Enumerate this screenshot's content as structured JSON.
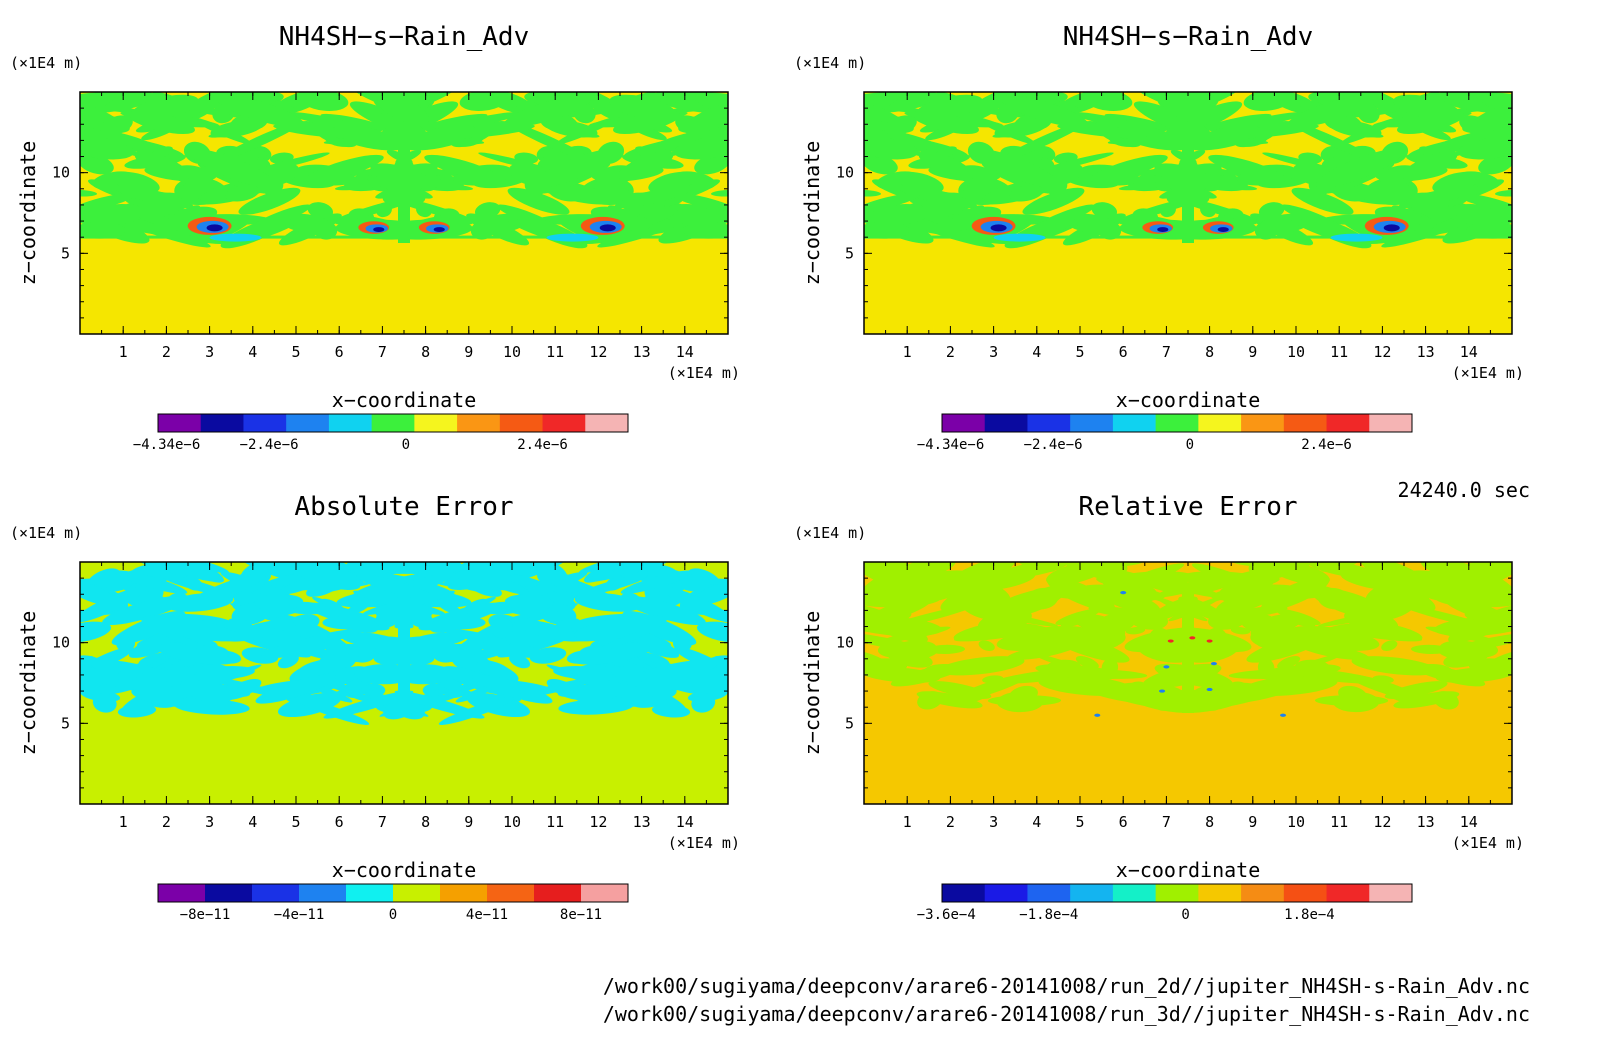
{
  "time_label": "24240.0 sec",
  "footer": {
    "file_2d": "/work00/sugiyama/deepconv/arare6-20141008/run_2d//jupiter_NH4SH-s-Rain_Adv.nc",
    "file_3d": "/work00/sugiyama/deepconv/arare6-20141008/run_3d//jupiter_NH4SH-s-Rain_Adv.nc"
  },
  "chart_data": [
    {
      "type": "heatmap",
      "title": "NH4SH−s−Rain_Adv",
      "xlabel": "x−coordinate",
      "ylabel": "z−coordinate",
      "x_unit": "(×1E4 m)",
      "y_unit": "(×1E4 m)",
      "xlim": [
        0,
        15
      ],
      "ylim": [
        0,
        15
      ],
      "x_ticks": [
        "1",
        "2",
        "3",
        "4",
        "5",
        "6",
        "7",
        "8",
        "9",
        "10",
        "11",
        "12",
        "13",
        "14"
      ],
      "y_ticks": [
        "5",
        "10"
      ],
      "colorbar": {
        "colors": [
          "#7b00a8",
          "#0a0aa0",
          "#1a32e6",
          "#1e82f0",
          "#10d2f0",
          "#3cf03c",
          "#f5f51e",
          "#fa9614",
          "#f55a14",
          "#f02828",
          "#f5b4b4"
        ],
        "tick_labels": [
          "−4.34e−6",
          "−2.4e−6",
          "0",
          "2.4e−6"
        ]
      },
      "background_color": "#f5e600",
      "pattern_color": "#3cf03c"
    },
    {
      "type": "heatmap",
      "title": "NH4SH−s−Rain_Adv",
      "xlabel": "x−coordinate",
      "ylabel": "z−coordinate",
      "x_unit": "(×1E4 m)",
      "y_unit": "(×1E4 m)",
      "xlim": [
        0,
        15
      ],
      "ylim": [
        0,
        15
      ],
      "x_ticks": [
        "1",
        "2",
        "3",
        "4",
        "5",
        "6",
        "7",
        "8",
        "9",
        "10",
        "11",
        "12",
        "13",
        "14"
      ],
      "y_ticks": [
        "5",
        "10"
      ],
      "colorbar": {
        "colors": [
          "#7b00a8",
          "#0a0aa0",
          "#1a32e6",
          "#1e82f0",
          "#10d2f0",
          "#3cf03c",
          "#f5f51e",
          "#fa9614",
          "#f55a14",
          "#f02828",
          "#f5b4b4"
        ],
        "tick_labels": [
          "−4.34e−6",
          "−2.4e−6",
          "0",
          "2.4e−6"
        ]
      },
      "background_color": "#f5e600",
      "pattern_color": "#3cf03c"
    },
    {
      "type": "heatmap",
      "title": "Absolute Error",
      "xlabel": "x−coordinate",
      "ylabel": "z−coordinate",
      "x_unit": "(×1E4 m)",
      "y_unit": "(×1E4 m)",
      "xlim": [
        0,
        15
      ],
      "ylim": [
        0,
        15
      ],
      "x_ticks": [
        "1",
        "2",
        "3",
        "4",
        "5",
        "6",
        "7",
        "8",
        "9",
        "10",
        "11",
        "12",
        "13",
        "14"
      ],
      "y_ticks": [
        "5",
        "10"
      ],
      "colorbar": {
        "colors": [
          "#7b00a8",
          "#0a0aa0",
          "#1a32e6",
          "#1e82f0",
          "#10f0f0",
          "#c8f000",
          "#f5a000",
          "#f56414",
          "#e61e1e",
          "#f5a0a0"
        ],
        "tick_labels": [
          "−8e−11",
          "−4e−11",
          "0",
          "4e−11",
          "8e−11"
        ]
      },
      "background_color": "#c8f000",
      "pattern_color": "#10e6f0"
    },
    {
      "type": "heatmap",
      "title": "Relative Error",
      "xlabel": "x−coordinate",
      "ylabel": "z−coordinate",
      "x_unit": "(×1E4 m)",
      "y_unit": "(×1E4 m)",
      "xlim": [
        0,
        15
      ],
      "ylim": [
        0,
        15
      ],
      "x_ticks": [
        "1",
        "2",
        "3",
        "4",
        "5",
        "6",
        "7",
        "8",
        "9",
        "10",
        "11",
        "12",
        "13",
        "14"
      ],
      "y_ticks": [
        "5",
        "10"
      ],
      "colorbar": {
        "colors": [
          "#0a0aa0",
          "#1a1ae6",
          "#1e64f0",
          "#14b4f0",
          "#14f0c8",
          "#a0f000",
          "#f5c800",
          "#f58c14",
          "#f55014",
          "#f02828",
          "#f5b4b4"
        ],
        "tick_labels": [
          "−3.6e−4",
          "−1.8e−4",
          "0",
          "1.8e−4"
        ]
      },
      "background_color": "#f5c800",
      "pattern_color": "#a0f000"
    }
  ]
}
